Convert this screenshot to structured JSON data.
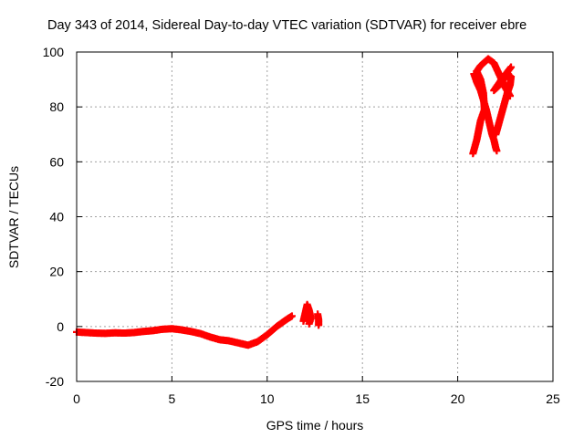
{
  "chart_data": {
    "type": "scatter",
    "title": "Day 343 of 2014, Sidereal Day-to-day VTEC variation (SDTVAR) for receiver ebre",
    "xlabel": "GPS time / hours",
    "ylabel": "SDTVAR / TECUs",
    "xlim": [
      0,
      25
    ],
    "ylim": [
      -20,
      100
    ],
    "xticks": [
      "0",
      "5",
      "10",
      "15",
      "20",
      "25"
    ],
    "yticks": [
      "-20",
      "0",
      "20",
      "40",
      "60",
      "80",
      "100"
    ],
    "grid": true,
    "marker": "+",
    "series": [
      {
        "color": "#ff0000",
        "segments": [
          [
            [
              0.0,
              -2
            ],
            [
              0.5,
              -2.2
            ],
            [
              1.0,
              -2.4
            ],
            [
              1.5,
              -2.5
            ],
            [
              2.0,
              -2.3
            ],
            [
              2.5,
              -2.4
            ],
            [
              3.0,
              -2.2
            ],
            [
              3.5,
              -1.8
            ],
            [
              4.0,
              -1.5
            ],
            [
              4.5,
              -1.0
            ],
            [
              5.0,
              -0.8
            ],
            [
              5.5,
              -1.2
            ],
            [
              6.0,
              -1.8
            ],
            [
              6.5,
              -2.6
            ],
            [
              7.0,
              -3.8
            ],
            [
              7.5,
              -4.8
            ],
            [
              8.0,
              -5.2
            ],
            [
              8.5,
              -6.0
            ],
            [
              9.0,
              -6.8
            ],
            [
              9.5,
              -5.5
            ],
            [
              10.0,
              -3.0
            ],
            [
              10.5,
              0.0
            ],
            [
              11.0,
              2.5
            ],
            [
              11.3,
              3.8
            ]
          ],
          [
            [
              11.9,
              2.0
            ],
            [
              12.0,
              5.0
            ],
            [
              12.1,
              8.0
            ],
            [
              12.2,
              6.0
            ],
            [
              12.3,
              3.0
            ],
            [
              12.2,
              1.0
            ]
          ],
          [
            [
              12.7,
              0.5
            ],
            [
              12.7,
              2.5
            ],
            [
              12.65,
              4.5
            ]
          ],
          [
            [
              20.8,
              63
            ],
            [
              21.0,
              68
            ],
            [
              21.2,
              75
            ],
            [
              21.4,
              79
            ],
            [
              21.35,
              85
            ],
            [
              21.2,
              90
            ],
            [
              21.0,
              93
            ],
            [
              21.2,
              95
            ],
            [
              21.6,
              97.5
            ],
            [
              21.9,
              96
            ],
            [
              22.1,
              93
            ],
            [
              22.3,
              90
            ],
            [
              22.5,
              87
            ],
            [
              22.75,
              84
            ]
          ],
          [
            [
              20.85,
              92
            ],
            [
              21.0,
              89
            ],
            [
              21.2,
              86
            ],
            [
              21.5,
              79
            ],
            [
              21.7,
              73
            ],
            [
              21.8,
              70
            ],
            [
              21.9,
              68
            ],
            [
              22.0,
              65
            ],
            [
              22.05,
              64
            ]
          ],
          [
            [
              22.0,
              70
            ],
            [
              22.2,
              75
            ],
            [
              22.4,
              80
            ],
            [
              22.6,
              85
            ],
            [
              22.75,
              88
            ],
            [
              22.8,
              91
            ],
            [
              22.6,
              92
            ],
            [
              22.2,
              88
            ],
            [
              21.9,
              86
            ],
            [
              22.3,
              90
            ],
            [
              22.8,
              94.5
            ]
          ]
        ]
      }
    ]
  }
}
